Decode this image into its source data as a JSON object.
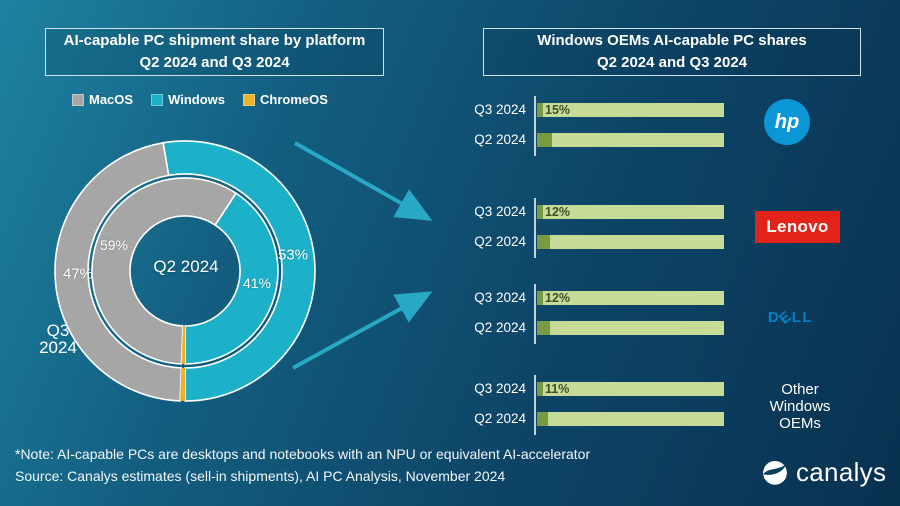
{
  "left_panel": {
    "title_line1": "AI-capable PC shipment share by platform",
    "title_line2": "Q2 2024 and Q3 2024",
    "legend": [
      {
        "label": "MacOS",
        "color": "#a6a6a6"
      },
      {
        "label": "Windows",
        "color": "#1cb1c9"
      },
      {
        "label": "ChromeOS",
        "color": "#eab02e"
      }
    ]
  },
  "right_panel": {
    "title_line1": "Windows OEMs AI-capable PC shares",
    "title_line2": "Q2 2024 and Q3 2024"
  },
  "footer": {
    "note": "*Note: AI-capable PCs are desktops and notebooks with an NPU or equivalent AI-accelerator",
    "source": "Source: Canalys estimates (sell-in shipments), AI PC Analysis, November 2024"
  },
  "branding": {
    "canalys": "canalys",
    "hp": "hp",
    "lenovo": "Lenovo",
    "dell": "DELL",
    "other_lines": [
      "Other",
      "Windows",
      "OEMs"
    ]
  },
  "colors": {
    "macos": "#a6a6a6",
    "windows": "#1cb1c9",
    "chromeos": "#eab02e",
    "bar_share": "#7a9a41",
    "bar_remainder": "#c6db97",
    "bar_label_text": "#3e4e26",
    "arrow": "#29a8c5",
    "hp_blue": "#0b97d5",
    "lenovo_red": "#e2231a",
    "dell_blue": "#0082c5"
  },
  "chart_data": [
    {
      "type": "pie",
      "variant": "double-ring-donut",
      "title": "AI-capable PC shipment share by platform Q2 2024 and Q3 2024",
      "legend_position": "top",
      "center_label": "Q2 2024",
      "outer_label": "Q3 2024",
      "outer_label_lines": [
        "Q3",
        "2024"
      ],
      "rings": [
        {
          "name": "Q3 2024",
          "position": "outer",
          "segments": [
            {
              "label": "ChromeOS",
              "pct": 0.6,
              "display": ""
            },
            {
              "label": "MacOS",
              "pct": 47,
              "display": "47%"
            },
            {
              "label": "Windows",
              "pct": 53,
              "display": "53%"
            }
          ]
        },
        {
          "name": "Q2 2024",
          "position": "inner",
          "segments": [
            {
              "label": "ChromeOS",
              "pct": 0.6,
              "display": ""
            },
            {
              "label": "MacOS",
              "pct": 59,
              "display": "59%"
            },
            {
              "label": "Windows",
              "pct": 41,
              "display": "41%"
            }
          ]
        }
      ]
    },
    {
      "type": "bar",
      "orientation": "horizontal",
      "stacked": "100%",
      "title": "Windows OEMs AI-capable PC shares Q2 2024 and Q3 2024",
      "categories": [
        "HP",
        "Lenovo",
        "Dell",
        "Other Windows OEMs"
      ],
      "series": [
        {
          "name": "Q3 2024",
          "values": [
            15,
            12,
            12,
            11
          ],
          "display_labels": [
            "15%",
            "12%",
            "12%",
            "11%"
          ]
        },
        {
          "name": "Q2 2024",
          "values": [
            8,
            7,
            7,
            6
          ],
          "display_labels": [
            "",
            "",
            "",
            ""
          ]
        }
      ]
    }
  ]
}
